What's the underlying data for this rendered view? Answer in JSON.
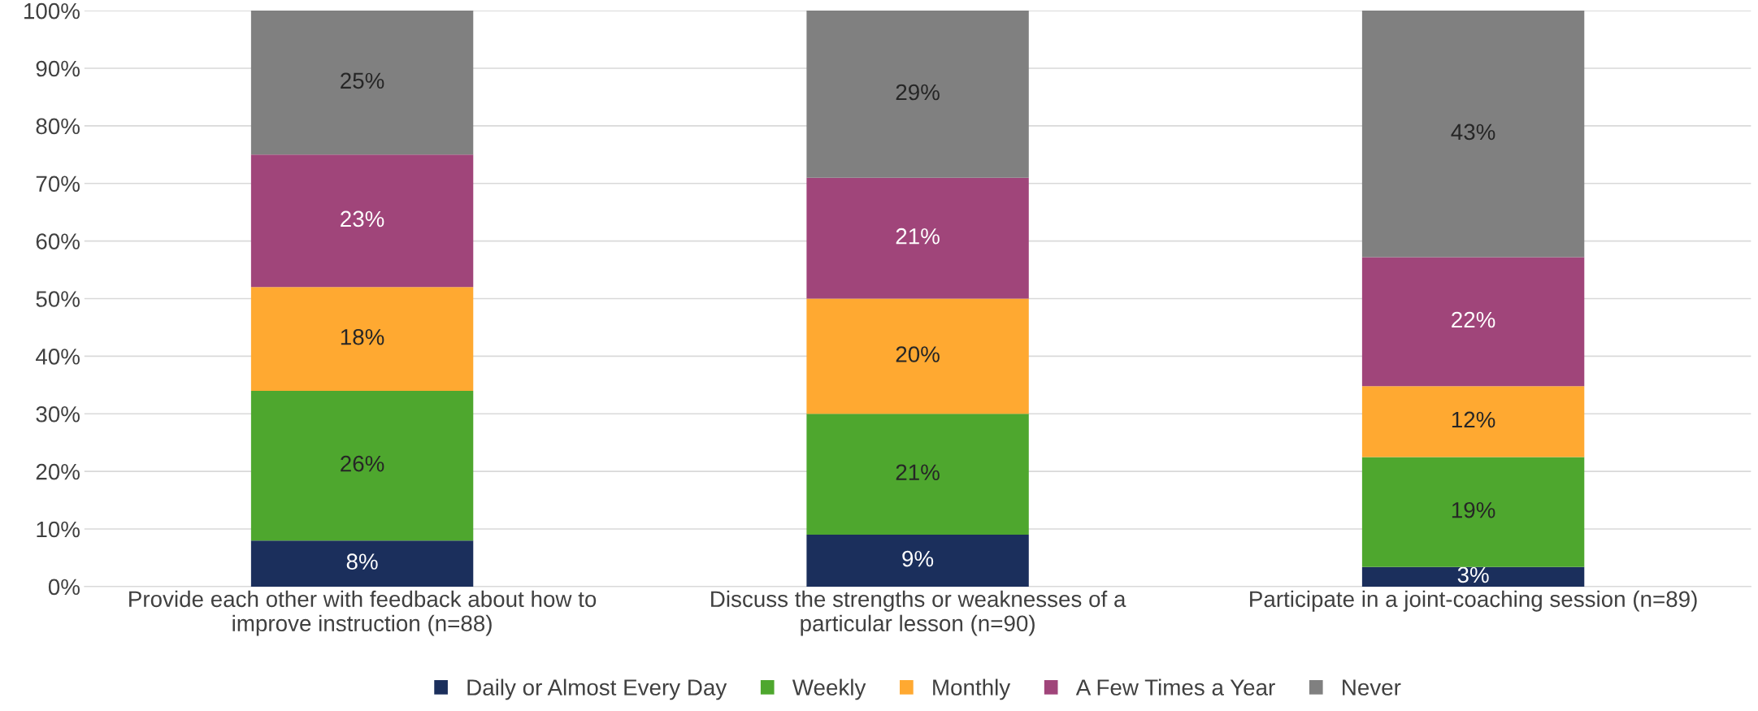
{
  "chart_data": {
    "type": "bar",
    "stacked": true,
    "categories": [
      "Provide each other with feedback about how to\nimprove instruction (n=88)",
      "Discuss the strengths or weaknesses of a\nparticular lesson (n=90)",
      "Participate in a joint-coaching session (n=89)"
    ],
    "series": [
      {
        "name": "Daily or Almost Every Day",
        "color": "#1b2f5c",
        "values": [
          8,
          9,
          3.4
        ],
        "value_labels": [
          "8%",
          "9%",
          "3%"
        ]
      },
      {
        "name": "Weekly",
        "color": "#4ea72e",
        "values": [
          26,
          21,
          19.1
        ],
        "value_labels": [
          "26%",
          "21%",
          "19%"
        ]
      },
      {
        "name": "Monthly",
        "color": "#ffa931",
        "values": [
          18,
          20,
          12.3
        ],
        "value_labels": [
          "18%",
          "20%",
          "12%"
        ]
      },
      {
        "name": "A Few Times a Year",
        "color": "#a0457a",
        "values": [
          23,
          21,
          22.4
        ],
        "value_labels": [
          "23%",
          "21%",
          "22%"
        ]
      },
      {
        "name": "Never",
        "color": "#808080",
        "values": [
          25,
          29,
          42.8
        ],
        "value_labels": [
          "25%",
          "29%",
          "43%"
        ]
      }
    ],
    "ylim": [
      0,
      100
    ],
    "yticks": [
      {
        "value": 0,
        "label": "0%"
      },
      {
        "value": 10,
        "label": "10%"
      },
      {
        "value": 20,
        "label": "20%"
      },
      {
        "value": 30,
        "label": "30%"
      },
      {
        "value": 40,
        "label": "40%"
      },
      {
        "value": 50,
        "label": "50%"
      },
      {
        "value": 60,
        "label": "60%"
      },
      {
        "value": 70,
        "label": "70%"
      },
      {
        "value": 80,
        "label": "80%"
      },
      {
        "value": 90,
        "label": "90%"
      },
      {
        "value": 100,
        "label": "100%"
      }
    ],
    "grid": "y",
    "legend": "bottom"
  }
}
